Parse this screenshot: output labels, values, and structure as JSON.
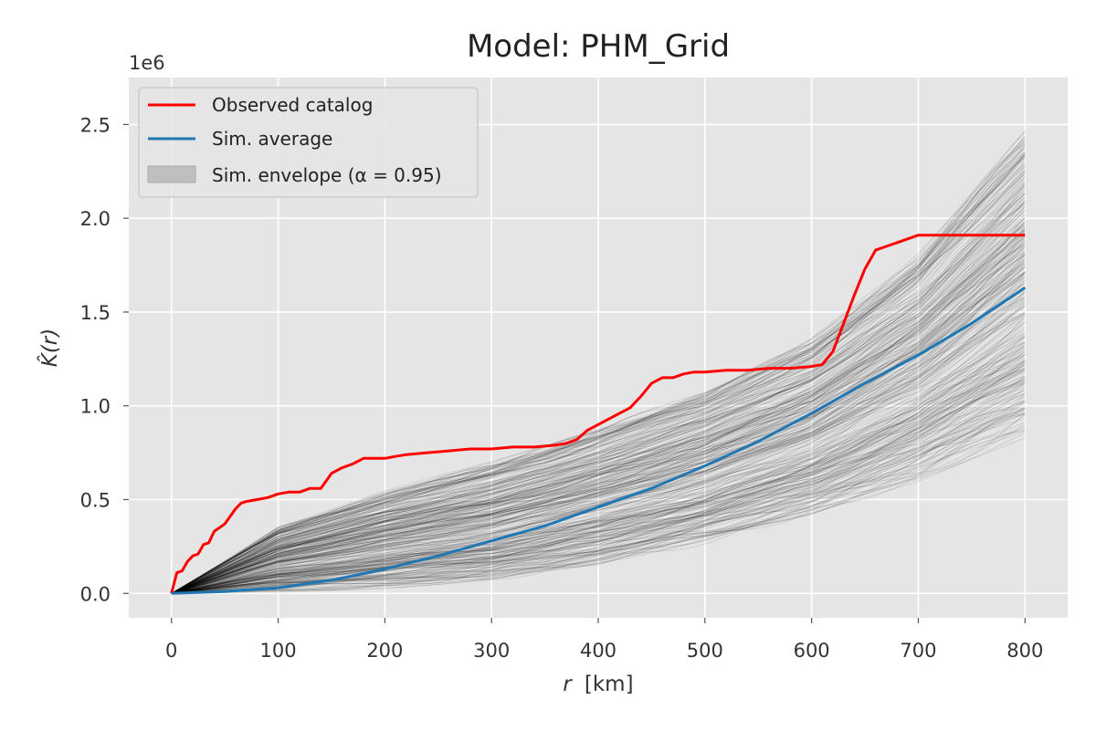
{
  "chart_data": {
    "type": "line",
    "title": "Model: PHM_Grid",
    "xlabel_var": "r",
    "xlabel_unit": "[km]",
    "ylabel": "K̂(r)",
    "y_offset_label": "1e6",
    "xlim": [
      -40,
      840
    ],
    "ylim": [
      -0.13,
      2.75
    ],
    "x_ticks": [
      0,
      100,
      200,
      300,
      400,
      500,
      600,
      700,
      800
    ],
    "y_ticks": [
      0.0,
      0.5,
      1.0,
      1.5,
      2.0,
      2.5
    ],
    "y_tick_labels": [
      "0.0",
      "0.5",
      "1.0",
      "1.5",
      "2.0",
      "2.5"
    ],
    "grid": true,
    "legend_position": "upper-left",
    "colors": {
      "observed": "#ff0000",
      "average": "#1f77b4",
      "envelope": "#000000",
      "plot_bg": "#e5e5e5",
      "grid": "#ffffff"
    },
    "series": [
      {
        "name": "Observed catalog",
        "x": [
          0,
          5,
          10,
          15,
          20,
          25,
          30,
          35,
          40,
          50,
          60,
          65,
          70,
          80,
          90,
          100,
          110,
          120,
          130,
          140,
          150,
          160,
          170,
          180,
          200,
          210,
          220,
          240,
          260,
          280,
          300,
          320,
          340,
          360,
          370,
          380,
          390,
          400,
          410,
          420,
          430,
          440,
          450,
          460,
          470,
          480,
          490,
          500,
          520,
          540,
          560,
          580,
          600,
          610,
          620,
          630,
          640,
          650,
          660,
          670,
          680,
          690,
          700,
          750,
          800
        ],
        "y": [
          0.0,
          0.11,
          0.12,
          0.17,
          0.2,
          0.21,
          0.26,
          0.27,
          0.33,
          0.37,
          0.45,
          0.48,
          0.49,
          0.5,
          0.51,
          0.53,
          0.54,
          0.54,
          0.56,
          0.56,
          0.64,
          0.67,
          0.69,
          0.72,
          0.72,
          0.73,
          0.74,
          0.75,
          0.76,
          0.77,
          0.77,
          0.78,
          0.78,
          0.79,
          0.8,
          0.82,
          0.87,
          0.9,
          0.93,
          0.96,
          0.99,
          1.05,
          1.12,
          1.15,
          1.15,
          1.17,
          1.18,
          1.18,
          1.19,
          1.19,
          1.2,
          1.2,
          1.21,
          1.22,
          1.29,
          1.44,
          1.59,
          1.73,
          1.83,
          1.85,
          1.87,
          1.89,
          1.91,
          1.91,
          1.91
        ]
      },
      {
        "name": "Sim. average",
        "x": [
          0,
          50,
          100,
          150,
          200,
          250,
          300,
          350,
          400,
          450,
          500,
          550,
          600,
          650,
          700,
          750,
          800
        ],
        "y": [
          0.0,
          0.01,
          0.03,
          0.07,
          0.13,
          0.2,
          0.28,
          0.36,
          0.46,
          0.56,
          0.68,
          0.81,
          0.96,
          1.12,
          1.27,
          1.44,
          1.63
        ]
      }
    ],
    "envelope": {
      "name": "Sim. envelope (α = 0.95)",
      "alpha": 0.95,
      "lower_x": [
        0,
        100,
        200,
        300,
        400,
        500,
        600,
        700,
        800
      ],
      "lower_y": [
        0.0,
        0.0,
        0.01,
        0.03,
        0.1,
        0.2,
        0.33,
        0.5,
        0.72
      ],
      "upper_x": [
        0,
        100,
        200,
        300,
        400,
        500,
        600,
        700,
        800
      ],
      "upper_y": [
        0.0,
        0.4,
        0.6,
        0.76,
        0.95,
        1.15,
        1.43,
        1.9,
        2.6
      ]
    }
  }
}
